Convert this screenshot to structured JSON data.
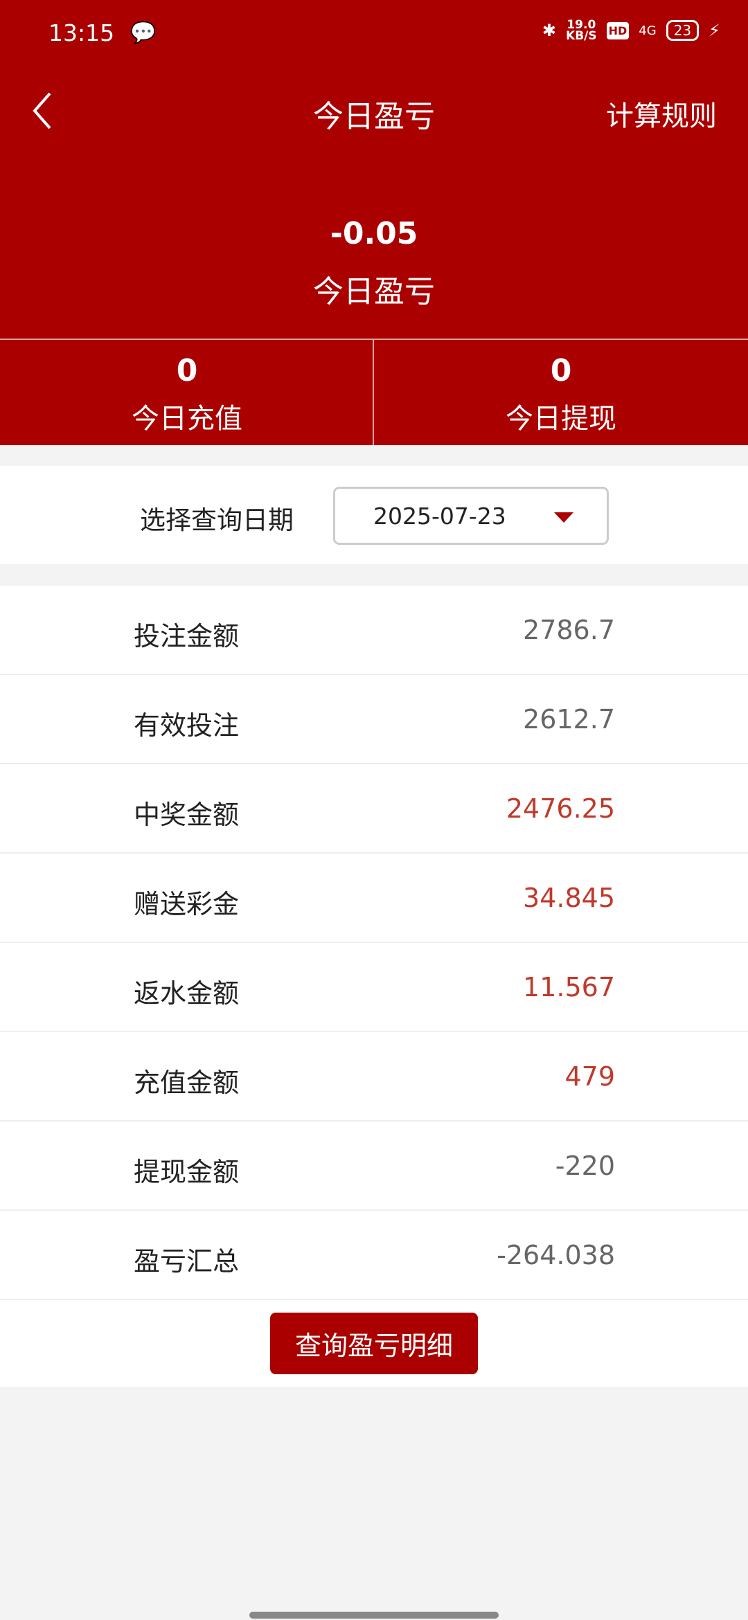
{
  "status_bar": {
    "time": "13:15",
    "net_speed": "19.0",
    "net_unit": "KB/S",
    "hd": "HD",
    "network": "4G",
    "battery": "23"
  },
  "nav": {
    "title": "今日盈亏",
    "rules": "计算规则"
  },
  "summary": {
    "value": "-0.05",
    "label": "今日盈亏"
  },
  "stats": [
    {
      "value": "0",
      "label": "今日充值"
    },
    {
      "value": "0",
      "label": "今日提现"
    }
  ],
  "date_filter": {
    "label": "选择查询日期",
    "value": "2025-07-23"
  },
  "rows": [
    {
      "label": "投注金额",
      "value": "2786.7",
      "highlight": false
    },
    {
      "label": "有效投注",
      "value": "2612.7",
      "highlight": false
    },
    {
      "label": "中奖金额",
      "value": "2476.25",
      "highlight": true
    },
    {
      "label": "赠送彩金",
      "value": "34.845",
      "highlight": true
    },
    {
      "label": "返水金额",
      "value": "11.567",
      "highlight": true
    },
    {
      "label": "充值金额",
      "value": "479",
      "highlight": true
    },
    {
      "label": "提现金额",
      "value": "-220",
      "highlight": false
    },
    {
      "label": "盈亏汇总",
      "value": "-264.038",
      "highlight": false
    }
  ],
  "detail_button": "查询盈亏明细",
  "colors": {
    "brand": "#aa0000",
    "highlight": "#c0392b",
    "muted": "#666666"
  }
}
